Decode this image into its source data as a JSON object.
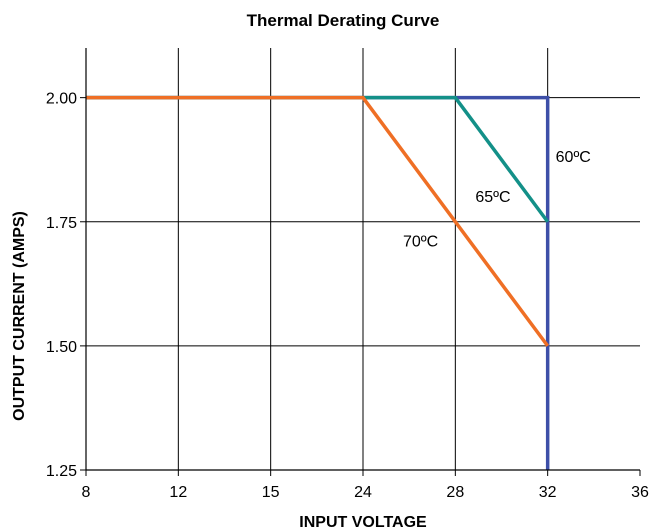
{
  "chart_data": {
    "type": "line",
    "title": "Thermal Derating Curve",
    "xlabel": "INPUT VOLTAGE",
    "ylabel": "OUTPUT CURRENT (AMPS)",
    "x_tick_labels": [
      "8",
      "12",
      "15",
      "24",
      "28",
      "32",
      "36"
    ],
    "x_scale": "categorical, evenly spaced ticks",
    "y_tick_labels": [
      "1.25",
      "1.50",
      "1.75",
      "2.00"
    ],
    "ylim": [
      1.25,
      2.1
    ],
    "grid": true,
    "legend": "none (inline annotations)",
    "series": [
      {
        "name": "60ºC",
        "color": "#3d4fa8",
        "x": [
          "8",
          "32",
          "32"
        ],
        "y": [
          2.0,
          2.0,
          1.25
        ]
      },
      {
        "name": "65ºC",
        "color": "#139088",
        "x": [
          "8",
          "28",
          "32"
        ],
        "y": [
          2.0,
          2.0,
          1.75
        ]
      },
      {
        "name": "70ºC",
        "color": "#ef6f25",
        "x": [
          "8",
          "24",
          "32"
        ],
        "y": [
          2.0,
          2.0,
          1.5
        ]
      }
    ]
  }
}
